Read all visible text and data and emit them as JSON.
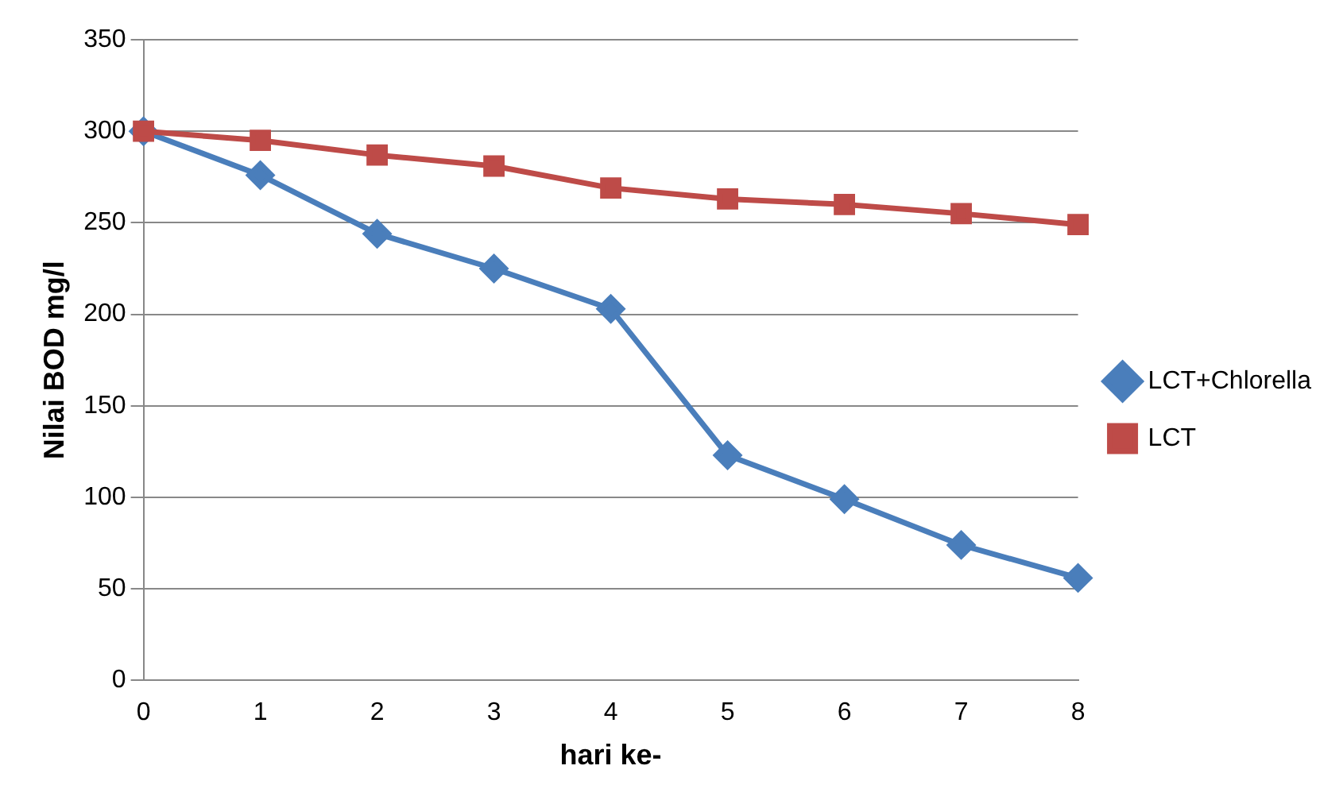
{
  "chart_data": {
    "type": "line",
    "xlabel": "hari ke-",
    "ylabel": "Nilai BOD mg/l",
    "categories": [
      "0",
      "1",
      "2",
      "3",
      "4",
      "5",
      "6",
      "7",
      "8"
    ],
    "series": [
      {
        "name": "LCT+Chlorella",
        "color": "#4a7ebb",
        "marker": "diamond",
        "values": [
          300,
          276,
          244,
          225,
          203,
          123,
          99,
          74,
          56
        ]
      },
      {
        "name": "LCT",
        "color": "#be4b48",
        "marker": "square",
        "values": [
          300,
          295,
          287,
          281,
          269,
          263,
          260,
          255,
          249
        ]
      }
    ],
    "ylim": [
      0,
      350
    ],
    "yticks": [
      0,
      50,
      100,
      150,
      200,
      250,
      300,
      350
    ],
    "grid": "y",
    "legend": "right",
    "line_style": "solid"
  }
}
